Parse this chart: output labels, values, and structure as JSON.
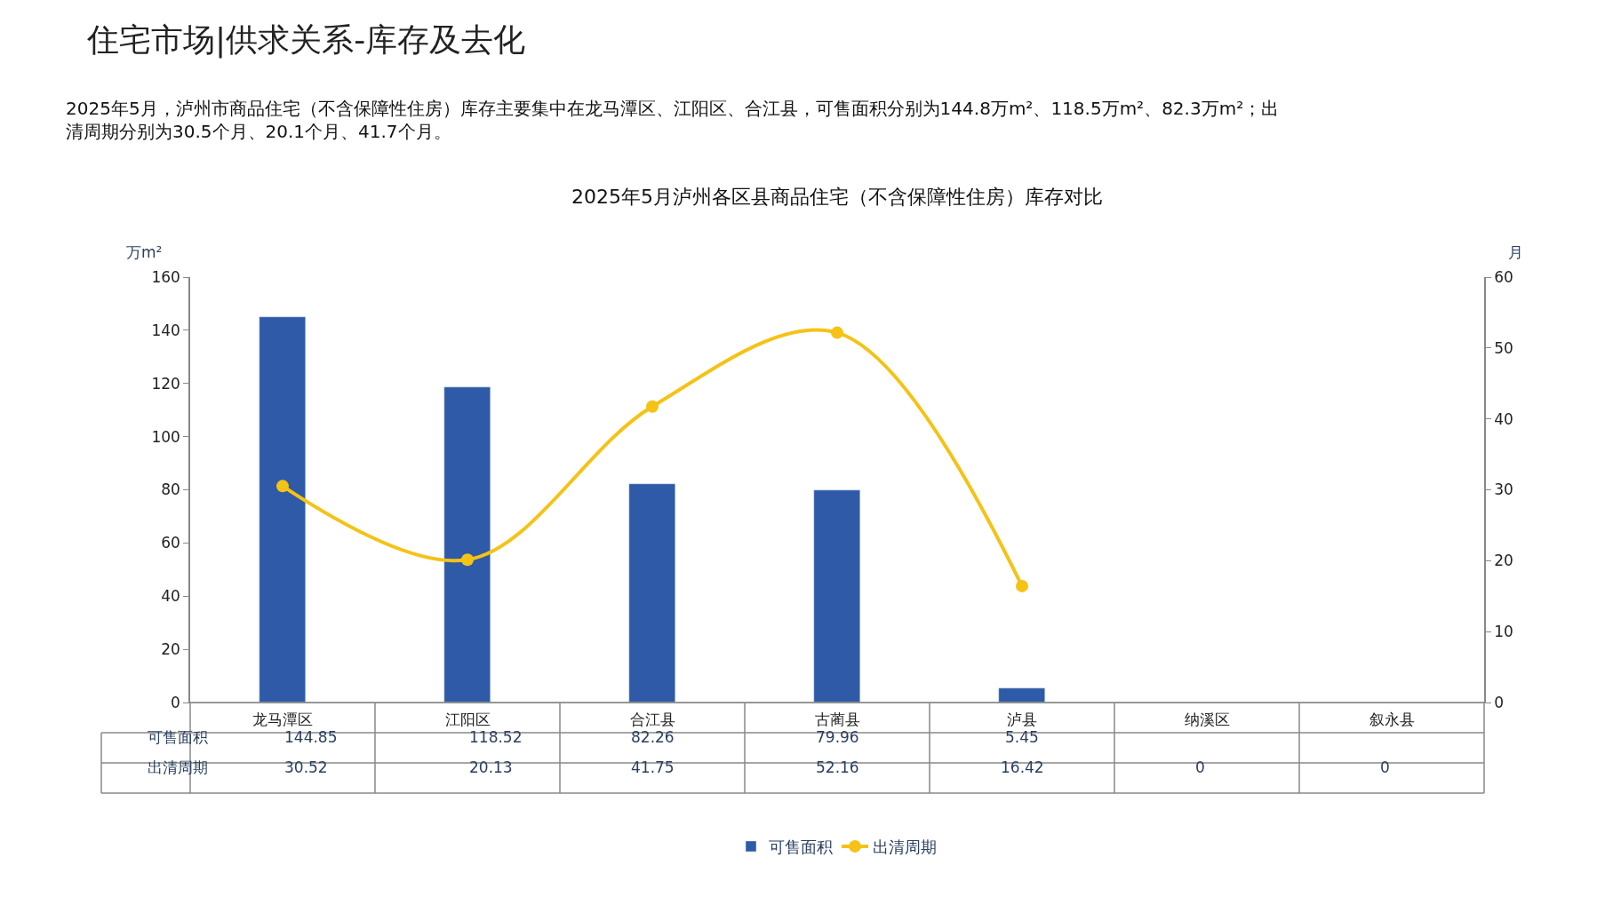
{
  "chart_data": {
    "type": "bar",
    "title": "住宅市场|供求关系-库存及去化",
    "subtitle": "2025年5月，泸州市商品住宅（不含保障性住房）库存主要集中在龙马潭区、江阳区、合江县，可售面积分别为144.8万m²、118.5万m²、82.3万m²；出清周期分别为30.5个月、20.1个月、41.7个月。",
    "annotations": [
      "2025年5月泸州各区县商品住宅（不含保障性住房）库存对比"
    ],
    "ylabel": "万m²",
    "y2label": "月",
    "categories": [
      "龙马潭区",
      "江阳区",
      "合江县",
      "古蔺县",
      "泸县",
      "纳溪区",
      "叙永县"
    ],
    "series": [
      {
        "name": "可售面积",
        "color": "#2e5aa7",
        "values": [
          144.85,
          118.52,
          82.26,
          79.96,
          5.45,
          null,
          null
        ],
        "value_labels": [
          "144.85",
          "118.52",
          "82.26",
          "79.96",
          "5.45",
          null,
          null
        ]
      },
      {
        "name": "出清周期",
        "type": "line",
        "axis": "y2",
        "color": "#f5c216",
        "marker": "circle",
        "values": [
          30.52,
          20.13,
          41.75,
          52.16,
          16.42,
          null,
          null
        ],
        "value_labels": [
          "30.52",
          "20.13",
          "41.75",
          "52.16",
          "16.42",
          "0",
          "0"
        ]
      }
    ],
    "ylim": [
      0,
      160
    ],
    "yticks": [
      0,
      20,
      40,
      60,
      80,
      100,
      120,
      140,
      160
    ],
    "y2lim": [
      0,
      60
    ],
    "y2ticks": [
      0,
      10,
      20,
      30,
      40,
      50,
      60
    ],
    "legend": "bottom"
  }
}
